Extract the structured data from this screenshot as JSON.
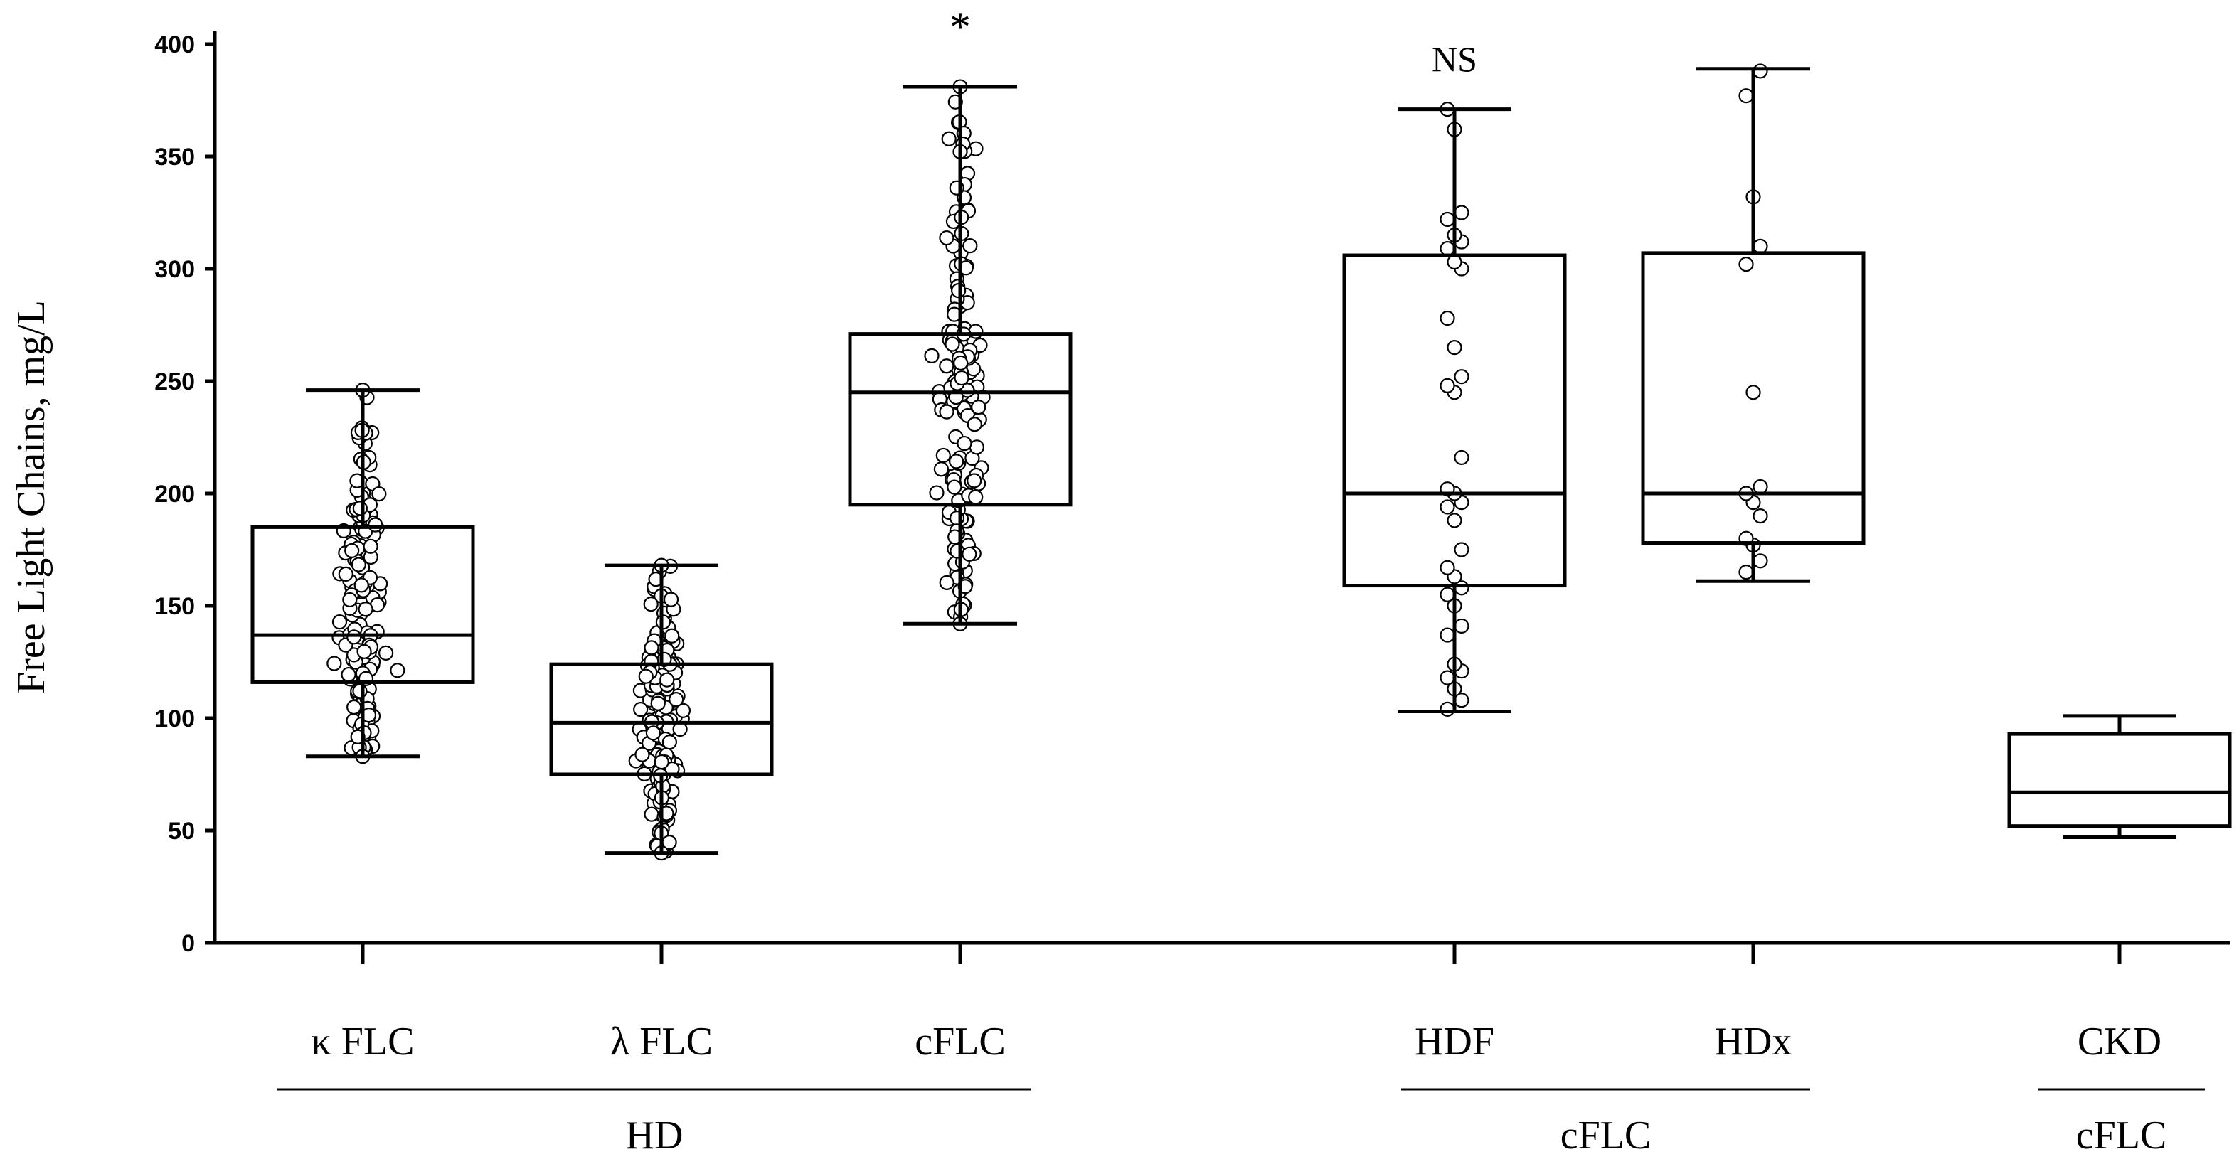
{
  "chart_data": {
    "type": "box",
    "ylabel": "Free Light Chains, mg/L",
    "ylim": [
      0,
      400
    ],
    "yticks": [
      0,
      50,
      100,
      150,
      200,
      250,
      300,
      350,
      400
    ],
    "grid": false,
    "categories": [
      "κ FLC",
      "λ FLC",
      "cFLC",
      "HDF",
      "HDx",
      "CKD"
    ],
    "groups": [
      {
        "label": "HD",
        "categories": [
          "κ FLC",
          "λ FLC",
          "cFLC"
        ]
      },
      {
        "label": "cFLC",
        "categories": [
          "HDF",
          "HDx"
        ]
      },
      {
        "label": "cFLC",
        "categories": [
          "CKD"
        ]
      }
    ],
    "boxes": [
      {
        "category": "κ FLC",
        "min": 83,
        "q1": 116,
        "median": 137,
        "q3": 185,
        "max": 246,
        "annotation": ""
      },
      {
        "category": "λ FLC",
        "min": 40,
        "q1": 75,
        "median": 98,
        "q3": 124,
        "max": 168,
        "annotation": ""
      },
      {
        "category": "cFLC",
        "min": 142,
        "q1": 195,
        "median": 245,
        "q3": 271,
        "max": 381,
        "annotation": "*"
      },
      {
        "category": "HDF",
        "min": 103,
        "q1": 159,
        "median": 200,
        "q3": 306,
        "max": 371,
        "annotation": "NS"
      },
      {
        "category": "HDx",
        "min": 161,
        "q1": 178,
        "median": 200,
        "q3": 307,
        "max": 389,
        "annotation": ""
      },
      {
        "category": "CKD",
        "min": 47,
        "q1": 52,
        "median": 67,
        "q3": 93,
        "max": 101,
        "annotation": ""
      }
    ],
    "points": [
      {
        "category": "HDF",
        "values": [
          104,
          108,
          113,
          118,
          121,
          124,
          137,
          141,
          150,
          155,
          158,
          163,
          167,
          175,
          188,
          194,
          196,
          200,
          202,
          216,
          245,
          248,
          252,
          265,
          278,
          300,
          303,
          309,
          312,
          315,
          322,
          325,
          362,
          371
        ]
      },
      {
        "category": "HDx",
        "values": [
          165,
          170,
          177,
          180,
          190,
          196,
          200,
          203,
          245,
          302,
          310,
          332,
          377,
          388
        ]
      }
    ]
  }
}
